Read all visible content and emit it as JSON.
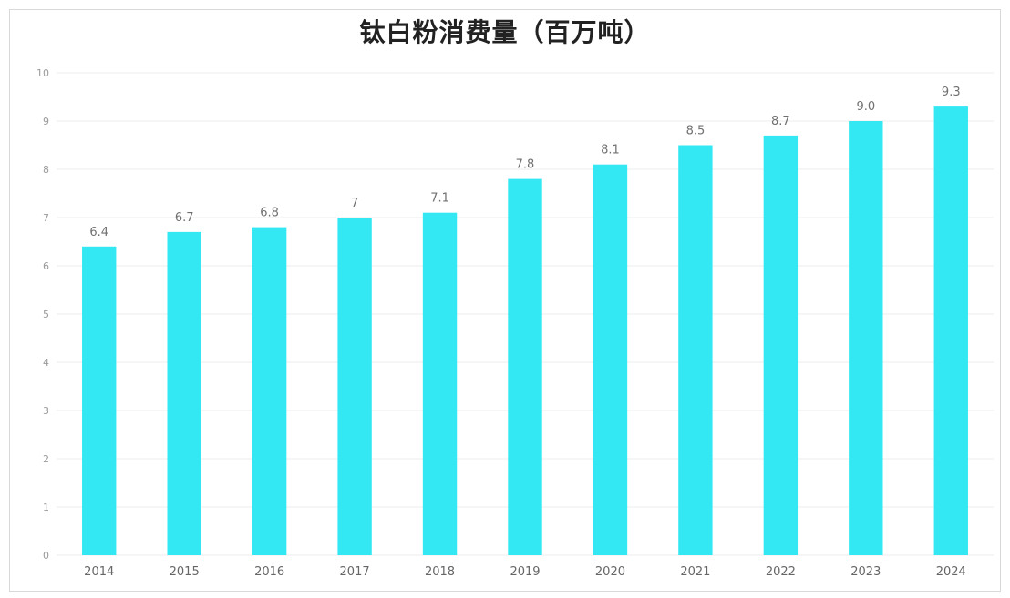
{
  "chart_data": {
    "type": "bar",
    "title": "钛白粉消费量（百万吨）",
    "categories": [
      "2014",
      "2015",
      "2016",
      "2017",
      "2018",
      "2019",
      "2020",
      "2021",
      "2022",
      "2023",
      "2024"
    ],
    "values": [
      6.4,
      6.7,
      6.8,
      7,
      7.1,
      7.8,
      8.1,
      8.5,
      8.7,
      9.0,
      9.3
    ],
    "data_labels": [
      "6.4",
      "6.7",
      "6.8",
      "7",
      "7.1",
      "7.8",
      "8.1",
      "8.5",
      "8.7",
      "9.0",
      "9.3"
    ],
    "ylim": [
      0,
      10
    ],
    "yticks": [
      0,
      1,
      2,
      3,
      4,
      5,
      6,
      7,
      8,
      9,
      10
    ],
    "grid": true,
    "legend": "none",
    "bar_color": "#33e8f2",
    "xlabel": "",
    "ylabel": ""
  }
}
